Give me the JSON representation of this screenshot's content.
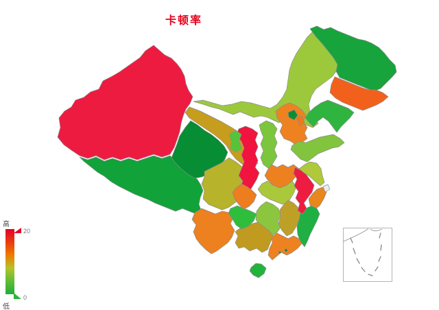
{
  "title": {
    "text": "卡顿率"
  },
  "colors": {
    "title": "#e8001c",
    "province_border": "#8c8c8c",
    "background": "#ffffff"
  },
  "legend": {
    "high_label": "高",
    "low_label": "低",
    "max_label": "20",
    "min_label": "0",
    "gradient_top_to_bottom": [
      "#e40029",
      "#ea3b0e",
      "#ec7c00",
      "#b5c32a",
      "#5fbc35",
      "#1fae39"
    ],
    "max_marker_color": "#e40029",
    "min_marker_color": "#2db33c"
  },
  "chart_data": {
    "type": "heatmap",
    "subtype": "china-province-choropleth",
    "title": "卡顿率",
    "value_range": [
      0,
      20
    ],
    "value_encoding": "province fill color on a green(0) to red(20) gradient; numeric values are not labeled on the map",
    "legend": {
      "high": "高",
      "low": "低",
      "max": 20,
      "min": 0,
      "position": "bottom-left"
    },
    "regions": [
      {
        "id": "xinjiang",
        "name": "新疆",
        "color": "#ee1b41",
        "tone": "red-high"
      },
      {
        "id": "tibet",
        "name": "西藏",
        "color": "#12a23a",
        "tone": "green-low"
      },
      {
        "id": "qinghai",
        "name": "青海",
        "color": "#078d33",
        "tone": "dark-green-low"
      },
      {
        "id": "gansu",
        "name": "甘肃",
        "color": "#c79d1e",
        "tone": "dark-yellow-mid"
      },
      {
        "id": "ningxia",
        "name": "宁夏",
        "color": "#55c43a",
        "tone": "green-low"
      },
      {
        "id": "inner-mongolia",
        "name": "内蒙古",
        "color": "#9cc93c",
        "tone": "yellow-green"
      },
      {
        "id": "heilongjiang",
        "name": "黑龙江",
        "color": "#17a43c",
        "tone": "green-low"
      },
      {
        "id": "jilin",
        "name": "吉林",
        "color": "#f2611c",
        "tone": "orange-high"
      },
      {
        "id": "liaoning",
        "name": "辽宁",
        "color": "#2fb43f",
        "tone": "green-low"
      },
      {
        "id": "hebei",
        "name": "河北",
        "color": "#ee8220",
        "tone": "orange-mid"
      },
      {
        "id": "beijing",
        "name": "北京",
        "color": "#0e8c33",
        "tone": "dark-green-low"
      },
      {
        "id": "tianjin",
        "name": "天津",
        "color": "#f07818",
        "tone": "orange-mid"
      },
      {
        "id": "shanxi",
        "name": "山西",
        "color": "#7cc63e",
        "tone": "light-green"
      },
      {
        "id": "shaanxi",
        "name": "陕西",
        "color": "#f0143f",
        "tone": "red-high"
      },
      {
        "id": "shandong",
        "name": "山东",
        "color": "#82c43e",
        "tone": "light-green"
      },
      {
        "id": "henan",
        "name": "河南",
        "color": "#ed8120",
        "tone": "orange-mid"
      },
      {
        "id": "jiangsu",
        "name": "江苏",
        "color": "#afc93a",
        "tone": "yellow-green"
      },
      {
        "id": "anhui",
        "name": "安徽",
        "color": "#ee1c41",
        "tone": "red-high"
      },
      {
        "id": "shanghai",
        "name": "上海",
        "color": "#ededed",
        "tone": "no-data"
      },
      {
        "id": "hubei",
        "name": "湖北",
        "color": "#a9c93a",
        "tone": "yellow-green"
      },
      {
        "id": "chongqing",
        "name": "重庆",
        "color": "#ed7d1f",
        "tone": "orange-mid"
      },
      {
        "id": "sichuan",
        "name": "四川",
        "color": "#b7b32b",
        "tone": "olive-mid"
      },
      {
        "id": "guizhou",
        "name": "贵州",
        "color": "#2fbe3c",
        "tone": "green-low"
      },
      {
        "id": "hunan",
        "name": "湖南",
        "color": "#8cc63e",
        "tone": "light-green"
      },
      {
        "id": "jiangxi",
        "name": "江西",
        "color": "#bfa027",
        "tone": "dark-yellow-mid"
      },
      {
        "id": "zhejiang",
        "name": "浙江",
        "color": "#e8871e",
        "tone": "orange-mid"
      },
      {
        "id": "fujian",
        "name": "福建",
        "color": "#1faf42",
        "tone": "green-low"
      },
      {
        "id": "guangdong",
        "name": "广东",
        "color": "#ee8120",
        "tone": "orange-mid"
      },
      {
        "id": "guangxi",
        "name": "广西",
        "color": "#c09b20",
        "tone": "dark-yellow-mid"
      },
      {
        "id": "yunnan",
        "name": "云南",
        "color": "#ed801f",
        "tone": "orange-mid"
      },
      {
        "id": "hainan",
        "name": "海南",
        "color": "#22b33c",
        "tone": "green-low"
      },
      {
        "id": "taiwan",
        "name": "台湾",
        "color": "#0f8a35",
        "tone": "dark-green-low"
      },
      {
        "id": "hongkong",
        "name": "香港",
        "color": "#0b8c33",
        "tone": "dark-green-low"
      },
      {
        "id": "macau",
        "name": "澳门",
        "color": "#0b8c33",
        "tone": "dark-green-low"
      }
    ]
  },
  "inset": {
    "description": "South China Sea inset with nine-dash line"
  }
}
